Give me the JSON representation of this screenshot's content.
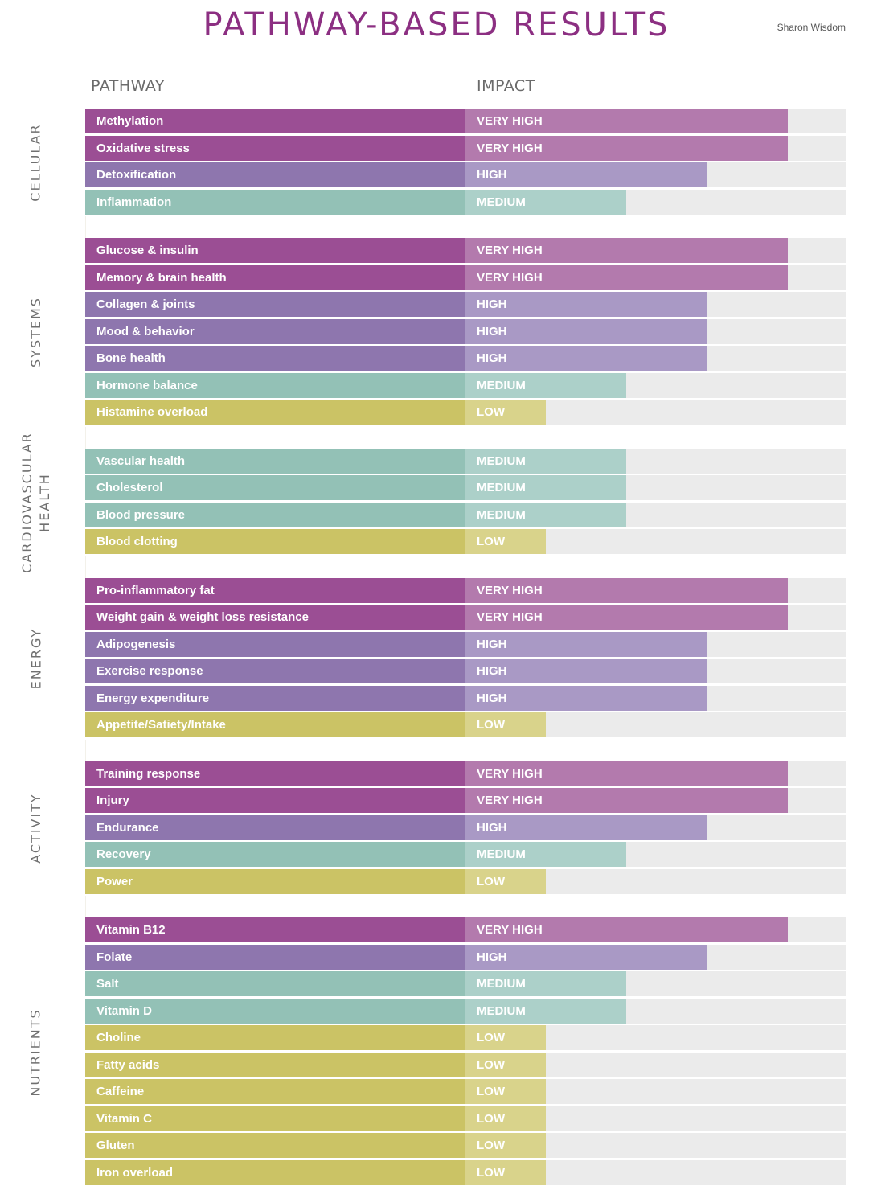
{
  "header": {
    "title": "PATHWAY-BASED RESULTS",
    "author": "Sharon Wisdom",
    "col_pathway": "PATHWAY",
    "col_impact": "IMPACT"
  },
  "levels": {
    "VERY HIGH": {
      "value": 4,
      "name_color": "#9b4e94",
      "bar_color": "#b37aad"
    },
    "HIGH": {
      "value": 3,
      "name_color": "#8e76ae",
      "bar_color": "#a999c5"
    },
    "MEDIUM": {
      "value": 2,
      "name_color": "#93c1b6",
      "bar_color": "#acd0c9"
    },
    "LOW": {
      "value": 1,
      "name_color": "#cbc365",
      "bar_color": "#d9d38b"
    }
  },
  "chart_data": {
    "type": "bar",
    "orientation": "horizontal",
    "title": "PATHWAY-BASED RESULTS",
    "xlabel": "IMPACT",
    "ylabel": "PATHWAY",
    "scale": {
      "LOW": 1,
      "MEDIUM": 2,
      "HIGH": 3,
      "VERY HIGH": 4
    },
    "xlim": [
      0,
      4.72
    ],
    "groups": [
      {
        "name": "CELLULAR",
        "items": [
          {
            "pathway": "Methylation",
            "impact": "VERY HIGH"
          },
          {
            "pathway": "Oxidative stress",
            "impact": "VERY HIGH"
          },
          {
            "pathway": "Detoxification",
            "impact": "HIGH"
          },
          {
            "pathway": "Inflammation",
            "impact": "MEDIUM"
          }
        ]
      },
      {
        "name": "SYSTEMS",
        "items": [
          {
            "pathway": "Glucose & insulin",
            "impact": "VERY HIGH"
          },
          {
            "pathway": "Memory & brain health",
            "impact": "VERY HIGH"
          },
          {
            "pathway": "Collagen & joints",
            "impact": "HIGH"
          },
          {
            "pathway": "Mood & behavior",
            "impact": "HIGH"
          },
          {
            "pathway": "Bone health",
            "impact": "HIGH"
          },
          {
            "pathway": "Hormone balance",
            "impact": "MEDIUM"
          },
          {
            "pathway": "Histamine overload",
            "impact": "LOW"
          }
        ]
      },
      {
        "name": "CARDIOVASCULAR HEALTH",
        "items": [
          {
            "pathway": "Vascular health",
            "impact": "MEDIUM"
          },
          {
            "pathway": "Cholesterol",
            "impact": "MEDIUM"
          },
          {
            "pathway": "Blood pressure",
            "impact": "MEDIUM"
          },
          {
            "pathway": "Blood clotting",
            "impact": "LOW"
          }
        ]
      },
      {
        "name": "ENERGY",
        "items": [
          {
            "pathway": "Pro-inflammatory fat",
            "impact": "VERY HIGH"
          },
          {
            "pathway": "Weight gain & weight loss resistance",
            "impact": "VERY HIGH"
          },
          {
            "pathway": "Adipogenesis",
            "impact": "HIGH"
          },
          {
            "pathway": "Exercise response",
            "impact": "HIGH"
          },
          {
            "pathway": "Energy expenditure",
            "impact": "HIGH"
          },
          {
            "pathway": "Appetite/Satiety/Intake",
            "impact": "LOW"
          }
        ]
      },
      {
        "name": "ACTIVITY",
        "items": [
          {
            "pathway": "Training response",
            "impact": "VERY HIGH"
          },
          {
            "pathway": "Injury",
            "impact": "VERY HIGH"
          },
          {
            "pathway": "Endurance",
            "impact": "HIGH"
          },
          {
            "pathway": "Recovery",
            "impact": "MEDIUM"
          },
          {
            "pathway": "Power",
            "impact": "LOW"
          }
        ]
      },
      {
        "name": "NUTRIENTS",
        "items": [
          {
            "pathway": "Vitamin B12",
            "impact": "VERY HIGH"
          },
          {
            "pathway": "Folate",
            "impact": "HIGH"
          },
          {
            "pathway": "Salt",
            "impact": "MEDIUM"
          },
          {
            "pathway": "Vitamin D",
            "impact": "MEDIUM"
          },
          {
            "pathway": "Choline",
            "impact": "LOW"
          },
          {
            "pathway": "Fatty acids",
            "impact": "LOW"
          },
          {
            "pathway": "Caffeine",
            "impact": "LOW"
          },
          {
            "pathway": "Vitamin C",
            "impact": "LOW"
          },
          {
            "pathway": "Gluten",
            "impact": "LOW"
          },
          {
            "pathway": "Iron overload",
            "impact": "LOW"
          }
        ]
      }
    ]
  }
}
